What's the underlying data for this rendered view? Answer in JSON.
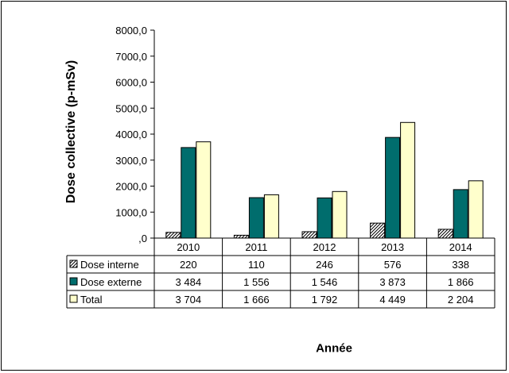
{
  "chart_data": {
    "type": "bar",
    "categories": [
      "2010",
      "2011",
      "2012",
      "2013",
      "2014"
    ],
    "series": [
      {
        "name": "Dose interne",
        "values": [
          220,
          110,
          246,
          576,
          338
        ],
        "labels": [
          "220",
          "110",
          "246",
          "576",
          "338"
        ],
        "color": "#ffffff",
        "pattern": "hatch"
      },
      {
        "name": "Dose externe",
        "values": [
          3484,
          1556,
          1546,
          3873,
          1866
        ],
        "labels": [
          "3 484",
          "1 556",
          "1 546",
          "3 873",
          "1 866"
        ],
        "color": "#006d6d"
      },
      {
        "name": "Total",
        "values": [
          3704,
          1666,
          1792,
          4449,
          2204
        ],
        "labels": [
          "3 704",
          "1 666",
          "1 792",
          "4 449",
          "2 204"
        ],
        "color": "#ffffcc"
      }
    ],
    "ylim": [
      0,
      8000
    ],
    "yticks": [
      0,
      1000,
      2000,
      3000,
      4000,
      5000,
      6000,
      7000,
      8000
    ],
    "ytick_labels": [
      ",0",
      "1000,0",
      "2000,0",
      "3000,0",
      "4000,0",
      "5000,0",
      "6000,0",
      "7000,0",
      "8000,0"
    ],
    "ylabel": "Dose collective (p-mSv)",
    "xlabel": "Année",
    "title": "",
    "grid": false,
    "legend": "data-table"
  }
}
